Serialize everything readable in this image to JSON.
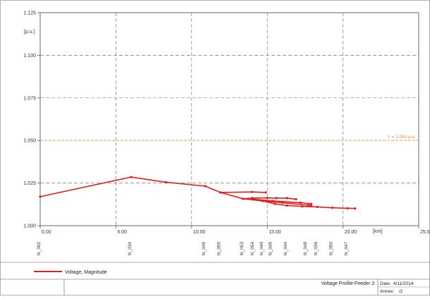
{
  "chart_data": {
    "type": "line",
    "ylabel": "[p.u.]",
    "xlabel": "[km]",
    "xlim": [
      0,
      25
    ],
    "ylim": [
      1.0,
      1.125
    ],
    "x_ticks": [
      "0.00",
      "5.00",
      "10.00",
      "15.00",
      "20.00",
      "25.00"
    ],
    "x_tick_values": [
      0,
      5,
      10,
      15,
      20,
      25
    ],
    "y_ticks": [
      "1.000",
      "1.025",
      "1.050",
      "1.075",
      "1.100",
      "1.125"
    ],
    "y_tick_values": [
      1.0,
      1.025,
      1.05,
      1.075,
      1.1,
      1.125
    ],
    "grid": true,
    "threshold": {
      "y": 1.05,
      "label": "Y = 1.050 p.u.",
      "color": "#e8874a"
    },
    "series_color": "#e31c1c",
    "node_labels": [
      {
        "name": "N_002",
        "x": 0.0
      },
      {
        "name": "N_034",
        "x": 6.0
      },
      {
        "name": "N_049",
        "x": 10.9
      },
      {
        "name": "N_055",
        "x": 11.9
      },
      {
        "name": "N_053",
        "x": 13.4
      },
      {
        "name": "N_054",
        "x": 14.1
      },
      {
        "name": "N_040",
        "x": 14.7
      },
      {
        "name": "N_045",
        "x": 15.3
      },
      {
        "name": "N_044",
        "x": 16.3
      },
      {
        "name": "N_048",
        "x": 17.6
      },
      {
        "name": "N_036",
        "x": 18.3
      },
      {
        "name": "N_050",
        "x": 19.3
      },
      {
        "name": "N_047",
        "x": 20.3
      }
    ],
    "series": [
      {
        "name": "Voltage, Magnitude",
        "segments": [
          [
            [
              0.0,
              1.017
            ],
            [
              6.0,
              1.0285
            ],
            [
              8.3,
              1.0255
            ],
            [
              10.9,
              1.0232
            ],
            [
              11.9,
              1.0195
            ],
            [
              13.4,
              1.0158
            ],
            [
              14.7,
              1.0145
            ],
            [
              15.5,
              1.0128
            ],
            [
              16.3,
              1.0118
            ],
            [
              17.3,
              1.0113
            ],
            [
              18.3,
              1.011
            ],
            [
              19.3,
              1.0105
            ],
            [
              20.3,
              1.0102
            ],
            [
              20.8,
              1.0101
            ]
          ],
          [
            [
              11.9,
              1.0195
            ],
            [
              14.0,
              1.0198
            ],
            [
              14.9,
              1.0195
            ]
          ],
          [
            [
              13.4,
              1.0158
            ],
            [
              14.0,
              1.0162
            ],
            [
              15.0,
              1.0163
            ],
            [
              15.6,
              1.0162
            ],
            [
              16.3,
              1.0162
            ],
            [
              16.9,
              1.0155
            ]
          ],
          [
            [
              14.1,
              1.0155
            ],
            [
              15.4,
              1.0145
            ],
            [
              17.2,
              1.0135
            ],
            [
              17.9,
              1.0128
            ]
          ],
          [
            [
              14.7,
              1.0145
            ],
            [
              16.0,
              1.0135
            ],
            [
              17.7,
              1.012
            ],
            [
              17.9,
              1.0118
            ]
          ]
        ]
      }
    ],
    "legend": {
      "position": "bottom-left",
      "label": "Voltage, Magnitude"
    }
  },
  "footer": {
    "title": "Voltage Profile-Feeder 3",
    "date_label": "Date:",
    "date_value": "4/11/2014",
    "annex_label": "Annex:",
    "annex_value": "/2"
  }
}
